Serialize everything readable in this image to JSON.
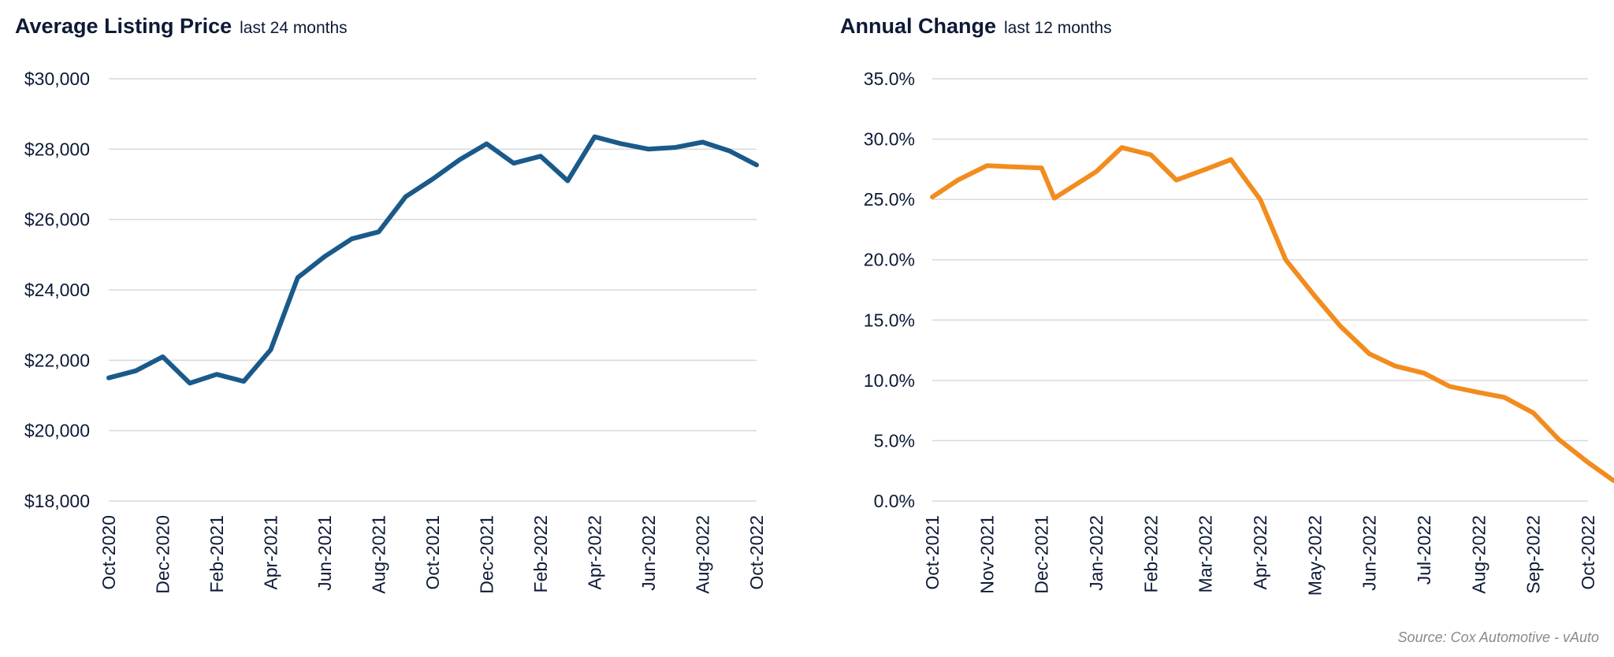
{
  "left_chart": {
    "title": "Average Listing Price",
    "subtitle": "last 24 months"
  },
  "right_chart": {
    "title": "Annual Change",
    "subtitle": "last 12 months"
  },
  "source": "Source: Cox Automotive - vAuto",
  "chart_data": [
    {
      "type": "line",
      "title": "Average Listing Price",
      "subtitle": "last 24 months",
      "color": "#1a5a8a",
      "ylim": [
        18000,
        30000
      ],
      "yticks": [
        "$18,000",
        "$20,000",
        "$22,000",
        "$24,000",
        "$26,000",
        "$28,000",
        "$30,000"
      ],
      "ytick_values": [
        18000,
        20000,
        22000,
        24000,
        26000,
        28000,
        30000
      ],
      "xlim": [
        "2020-10",
        "2022-10"
      ],
      "xticks": [
        "Oct-2020",
        "Dec-2020",
        "Feb-2021",
        "Apr-2021",
        "Jun-2021",
        "Aug-2021",
        "Oct-2021",
        "Dec-2021",
        "Feb-2022",
        "Apr-2022",
        "Jun-2022",
        "Aug-2022",
        "Oct-2022"
      ],
      "grid": true,
      "series": [
        {
          "x": [
            "2020-10",
            "2020-11",
            "2020-12",
            "2021-01",
            "2021-02",
            "2021-03",
            "2021-04",
            "2021-05",
            "2021-06",
            "2021-07",
            "2021-08",
            "2021-09",
            "2021-10",
            "2021-11",
            "2021-12",
            "2022-01",
            "2022-02",
            "2022-03",
            "2022-04",
            "2022-05",
            "2022-06",
            "2022-07",
            "2022-08",
            "2022-09",
            "2022-10"
          ],
          "values": [
            21500,
            21700,
            22100,
            21350,
            21600,
            21400,
            22300,
            24350,
            24950,
            25450,
            25650,
            26650,
            27150,
            27700,
            28150,
            27600,
            27800,
            27100,
            28350,
            28150,
            28000,
            28050,
            28200,
            27950,
            27550
          ]
        }
      ]
    },
    {
      "type": "line",
      "title": "Annual Change",
      "subtitle": "last 12 months",
      "color": "#f28c1e",
      "ylim": [
        0,
        35
      ],
      "yticks": [
        "0.0%",
        "5.0%",
        "10.0%",
        "15.0%",
        "20.0%",
        "25.0%",
        "30.0%",
        "35.0%"
      ],
      "ytick_values": [
        0,
        5,
        10,
        15,
        20,
        25,
        30,
        35
      ],
      "xlim": [
        "2021-10",
        "2022-10"
      ],
      "xticks": [
        "Oct-2021",
        "Nov-2021",
        "Dec-2021",
        "Jan-2022",
        "Feb-2022",
        "Mar-2022",
        "Apr-2022",
        "May-2022",
        "Jun-2022",
        "Jul-2022",
        "Aug-2022",
        "Sep-2022",
        "Oct-2022"
      ],
      "grid": true,
      "series": [
        {
          "x": [
            "2021-10",
            "2021-10-15",
            "2021-11",
            "2021-11-15",
            "2021-12",
            "2021-12-08",
            "2022-01",
            "2022-01-15",
            "2022-02",
            "2022-02-15",
            "2022-03",
            "2022-03-15",
            "2022-04",
            "2022-04-15",
            "2022-05",
            "2022-05-15",
            "2022-06",
            "2022-06-15",
            "2022-07",
            "2022-07-15",
            "2022-08",
            "2022-08-15",
            "2022-09",
            "2022-09-15",
            "2022-10",
            "2022-10-15"
          ],
          "values": [
            25.2,
            26.6,
            27.8,
            27.7,
            27.6,
            25.1,
            27.3,
            29.3,
            28.7,
            26.6,
            27.5,
            28.3,
            25.0,
            20.0,
            17.0,
            14.5,
            12.2,
            11.2,
            10.6,
            9.5,
            9.0,
            8.6,
            7.3,
            5.1,
            3.2,
            1.7
          ]
        }
      ]
    }
  ]
}
